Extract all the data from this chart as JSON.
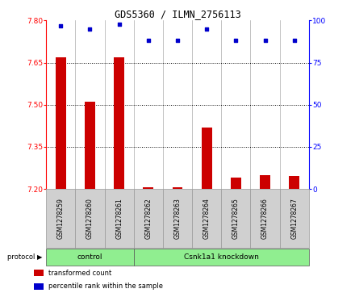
{
  "title": "GDS5360 / ILMN_2756113",
  "samples": [
    "GSM1278259",
    "GSM1278260",
    "GSM1278261",
    "GSM1278262",
    "GSM1278263",
    "GSM1278264",
    "GSM1278265",
    "GSM1278266",
    "GSM1278267"
  ],
  "bar_values": [
    7.67,
    7.51,
    7.67,
    7.205,
    7.205,
    7.42,
    7.24,
    7.25,
    7.245
  ],
  "dot_values": [
    97,
    95,
    98,
    88,
    88,
    95,
    88,
    88,
    88
  ],
  "bar_base": 7.2,
  "ylim_left": [
    7.2,
    7.8
  ],
  "ylim_right": [
    0,
    100
  ],
  "yticks_left": [
    7.2,
    7.35,
    7.5,
    7.65,
    7.8
  ],
  "yticks_right": [
    0,
    25,
    50,
    75,
    100
  ],
  "bar_color": "#cc0000",
  "dot_color": "#0000cc",
  "protocol_groups": [
    {
      "label": "control",
      "start": 0,
      "end": 2
    },
    {
      "label": "Csnk1a1 knockdown",
      "start": 3,
      "end": 8
    }
  ],
  "protocol_group_color": "#90ee90",
  "sample_box_color": "#d0d0d0",
  "legend_items": [
    {
      "label": "transformed count",
      "color": "#cc0000"
    },
    {
      "label": "percentile rank within the sample",
      "color": "#0000cc"
    }
  ]
}
